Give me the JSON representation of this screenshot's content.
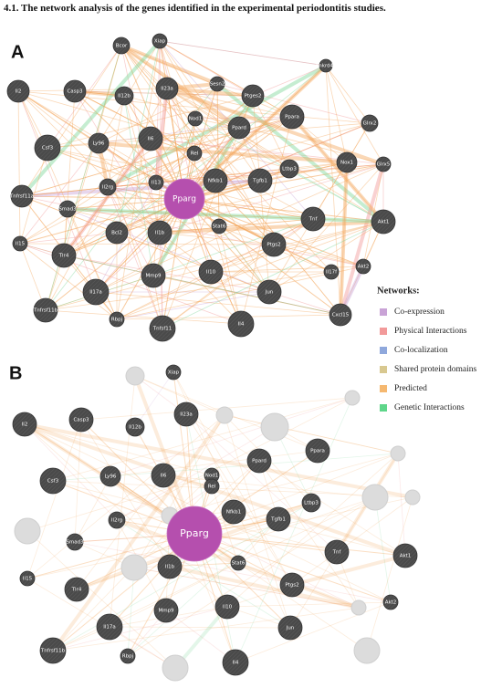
{
  "heading": "4.1. The network analysis of the genes identified in the experimental periodontitis studies.",
  "panels": [
    {
      "label": "A",
      "nodes": [
        "Bcor",
        "Xiap",
        "Il2",
        "Casp3",
        "Il12b",
        "Il23a",
        "Sesn2",
        "Ptges2",
        "Ankrd49",
        "Ppara",
        "Nod1",
        "Ppard",
        "Glrx2",
        "Csf3",
        "Ly96",
        "Il6",
        "Rel",
        "Nox1",
        "Glrx5",
        "Il2rg",
        "Il13",
        "Nfkb1",
        "Tgfb1",
        "Ltbp3",
        "Pparg",
        "Tnfrsf11a",
        "Smad3",
        "Bcl2",
        "Il1b",
        "Stat6",
        "Tnf",
        "Akt1",
        "Il15",
        "Tlr4",
        "Ptgs2",
        "Akt2",
        "Il17f",
        "Mmp9",
        "Il10",
        "Il17a",
        "Jun",
        "Cxcl15",
        "Tnfrsf11b",
        "Rbpj",
        "Tnfsf11",
        "Il4"
      ]
    },
    {
      "label": "B",
      "nodes": [
        "Xiap",
        "Il2",
        "Casp3",
        "Il12b",
        "Il23a",
        "Nod1",
        "Ppard",
        "Ppara",
        "Csf3",
        "Ly96",
        "Il6",
        "Rel",
        "Il2rg",
        "Nfkb1",
        "Tgfb1",
        "Ltbp3",
        "Pparg",
        "Smad3",
        "Il1b",
        "Stat6",
        "Tnf",
        "Akt1",
        "Il15",
        "Tlr4",
        "Ptgs2",
        "Akt2",
        "Mmp9",
        "Il10",
        "Il17a",
        "Jun",
        "Tnfrsf11b",
        "Rbpj",
        "Il4"
      ]
    }
  ],
  "legend": {
    "title": "Networks:",
    "items": [
      "Co-expression",
      "Physical Interactions",
      "Co-localization",
      "Shared protein domains",
      "Predicted",
      "Genetic Interactions"
    ]
  }
}
